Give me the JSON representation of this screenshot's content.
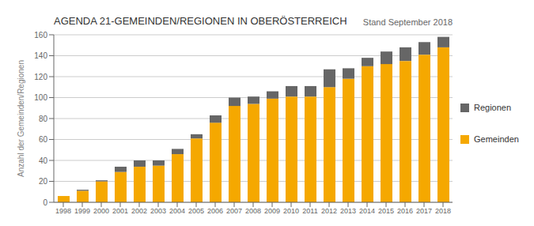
{
  "chart_data": {
    "type": "bar",
    "title": "AGENDA 21-GEMEINDEN/REGIONEN IN OBERÖSTERREICH",
    "subtitle": "Stand September 2018",
    "y_label": "Anzahl der Gemeinden/Regionen",
    "categories": [
      "1998",
      "1999",
      "2000",
      "2001",
      "2002",
      "2003",
      "2004",
      "2005",
      "2006",
      "2007",
      "2008",
      "2009",
      "2010",
      "2011",
      "2012",
      "2013",
      "2014",
      "2015",
      "2016",
      "2017",
      "2018"
    ],
    "series": [
      {
        "name": "Gemeinden",
        "color": "#F5A800",
        "values": [
          6,
          11,
          20,
          29,
          34,
          35,
          46,
          61,
          76,
          92,
          94,
          99,
          101,
          101,
          110,
          118,
          130,
          132,
          135,
          141,
          148
        ]
      },
      {
        "name": "Regionen",
        "color": "#666666",
        "values": [
          0,
          1,
          1,
          5,
          6,
          5,
          5,
          4,
          7,
          8,
          7,
          7,
          10,
          10,
          17,
          10,
          8,
          12,
          13,
          12,
          10
        ]
      }
    ],
    "stacked": true,
    "ylim": [
      0,
      160
    ],
    "yticks": [
      0,
      20,
      40,
      60,
      80,
      100,
      120,
      140,
      160
    ],
    "grid": true,
    "legend": "right"
  }
}
